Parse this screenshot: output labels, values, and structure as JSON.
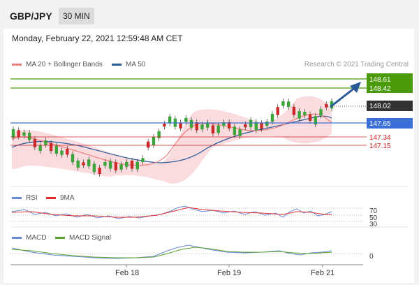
{
  "header": {
    "symbol": "GBP/JPY",
    "timeframe": "30 MIN"
  },
  "panel": {
    "datetime": "Monday, February 22, 2021 12:59:48 AM CET",
    "attribution": "Research © 2021 Trading Central"
  },
  "legend": {
    "ma20_bb": "MA 20 + Bollinger Bands",
    "ma50": "MA 50",
    "rsi": "RSI",
    "rsi_ma": "9MA",
    "macd": "MACD",
    "macd_signal": "MACD Signal"
  },
  "colors": {
    "ma20": "#f08080",
    "ma50": "#2a5a9a",
    "rsi": "#6a8ad8",
    "rsi_ma": "#e03030",
    "macd": "#6a8ad8",
    "macd_signal": "#5aa02c",
    "resistance": "#4a9a0a",
    "support": "#cc2222",
    "pivot": "#3a6fd8",
    "current": "#333333"
  },
  "price_levels": [
    {
      "value": "148.61",
      "kind": "resistance"
    },
    {
      "value": "148.42",
      "kind": "resistance"
    },
    {
      "value": "148.02",
      "kind": "current"
    },
    {
      "value": "147.65",
      "kind": "pivot"
    },
    {
      "value": "147.34",
      "kind": "support"
    },
    {
      "value": "147.15",
      "kind": "support"
    }
  ],
  "rsi_levels": [
    "70",
    "50",
    "30"
  ],
  "macd_level": "0",
  "x_ticks": [
    "Feb 18",
    "Feb 19",
    "Feb 21"
  ]
}
